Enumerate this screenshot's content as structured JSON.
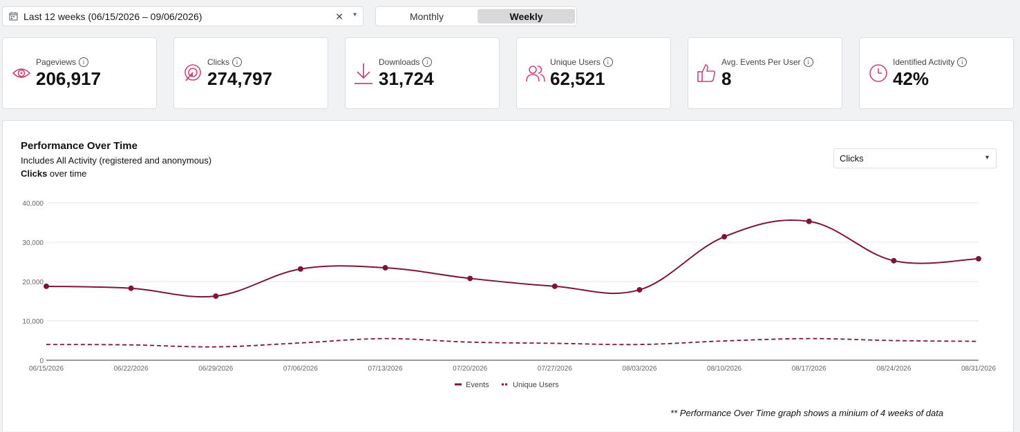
{
  "date_range": {
    "label": "Last 12 weeks (06/15/2026 – 09/06/2026)",
    "clear": "✕",
    "chevron": "⌄"
  },
  "granularity": {
    "options": [
      "Monthly",
      "Weekly"
    ],
    "selected": "Weekly"
  },
  "kpis": [
    {
      "label": "Pageviews",
      "value": "206,917",
      "icon": "eye-icon"
    },
    {
      "label": "Clicks",
      "value": "274,797",
      "icon": "click-target-icon"
    },
    {
      "label": "Downloads",
      "value": "31,724",
      "icon": "download-icon"
    },
    {
      "label": "Unique Users",
      "value": "62,521",
      "icon": "users-icon"
    },
    {
      "label": "Avg. Events Per User",
      "value": "8",
      "icon": "thumbs-up-icon"
    },
    {
      "label": "Identified Activity",
      "value": "42%",
      "icon": "clock-icon"
    }
  ],
  "info_glyph": "i",
  "panel": {
    "title": "Performance Over Time",
    "subtitle": "Includes All Activity (registered and anonymous)",
    "metric_bold": "Clicks",
    "metric_rest": " over time",
    "metric_select": "Clicks",
    "footnote": "** Performance Over Time graph shows a minium of 4 weeks of data"
  },
  "colors": {
    "accent": "#c2185b",
    "series_line": "#7d1535",
    "grid": "#e6e6e6",
    "icon": "#c9457a"
  },
  "chart_data": {
    "type": "line",
    "x": [
      "06/15/2026",
      "06/22/2026",
      "06/29/2026",
      "07/06/2026",
      "07/13/2026",
      "07/20/2026",
      "07/27/2026",
      "08/03/2026",
      "08/10/2026",
      "08/17/2026",
      "08/24/2026",
      "08/31/2026"
    ],
    "series": [
      {
        "name": "Events",
        "style": "solid",
        "markers": true,
        "values": [
          18800,
          18300,
          16300,
          23200,
          23500,
          20800,
          18800,
          17900,
          31400,
          35300,
          25300,
          25800
        ]
      },
      {
        "name": "Unique Users",
        "style": "dashed",
        "markers": false,
        "values": [
          4000,
          3900,
          3400,
          4400,
          5500,
          4600,
          4300,
          4000,
          4900,
          5500,
          5000,
          4800
        ]
      }
    ],
    "ylim": [
      0,
      40000
    ],
    "yticks": [
      "0",
      "10,000",
      "20,000",
      "30,000",
      "40,000"
    ],
    "yticks_values": [
      0,
      10000,
      20000,
      30000,
      40000
    ],
    "grid": true,
    "legend": "bottom-center"
  }
}
